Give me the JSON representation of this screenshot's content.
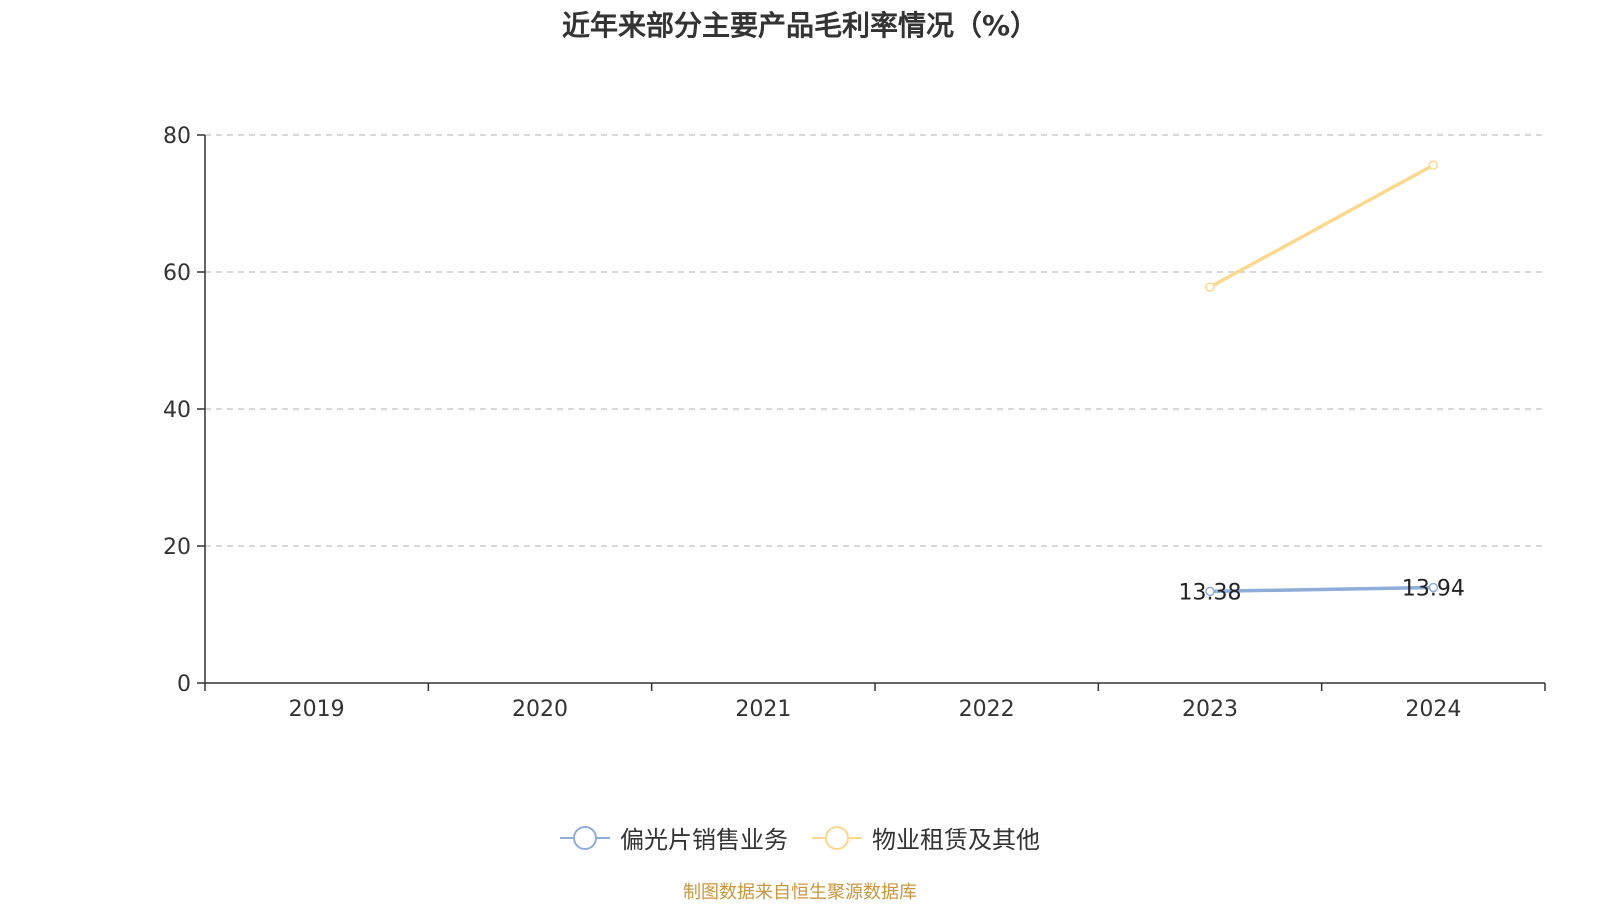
{
  "chart_data": {
    "type": "line",
    "title": "近年来部分主要产品毛利率情况（%）",
    "categories": [
      "2019",
      "2020",
      "2021",
      "2022",
      "2023",
      "2024"
    ],
    "ylim": [
      0,
      80
    ],
    "yticks": [
      0,
      20,
      40,
      60,
      80
    ],
    "grid": true,
    "legend_position": "bottom",
    "series": [
      {
        "name": "偏光片销售业务",
        "color": "#8fadd9",
        "values": [
          null,
          null,
          null,
          null,
          13.38,
          13.94
        ],
        "labels": [
          "",
          "",
          "",
          "",
          "13.38",
          "13.94"
        ]
      },
      {
        "name": "物业租赁及其他",
        "color": "#fbd88f",
        "values": [
          null,
          null,
          null,
          null,
          57.8,
          75.6
        ],
        "labels": [
          "",
          "",
          "",
          "",
          "",
          ""
        ]
      }
    ]
  },
  "source_note": "制图数据来自恒生聚源数据库"
}
